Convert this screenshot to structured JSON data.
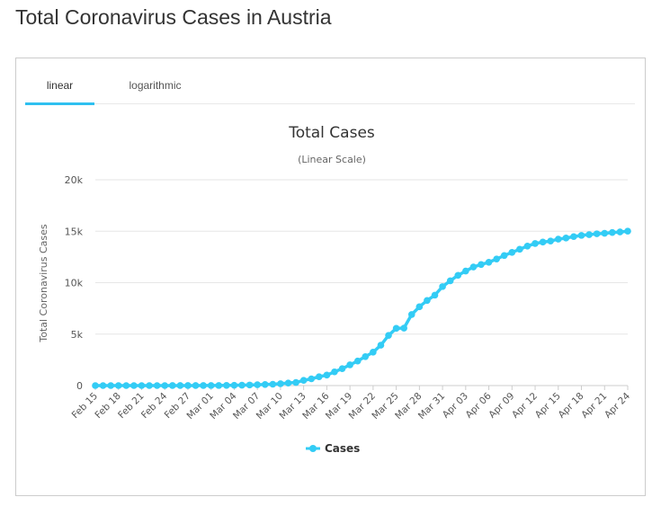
{
  "page": {
    "title": "Total Coronavirus Cases in Austria"
  },
  "tabs": [
    {
      "label": "linear",
      "active": true
    },
    {
      "label": "logarithmic",
      "active": false
    }
  ],
  "colors": {
    "series": "#33ccf5",
    "tab_accent": "#2fc0f0",
    "grid": "#e6e6e6"
  },
  "chart_data": {
    "type": "line",
    "title": "Total Cases",
    "subtitle": "(Linear Scale)",
    "ylabel": "Total Coronavirus Cases",
    "xlabel": "",
    "ylim": [
      0,
      20000
    ],
    "y_ticks": [
      0,
      5000,
      10000,
      15000,
      20000
    ],
    "y_tick_labels": [
      "0",
      "5k",
      "10k",
      "15k",
      "20k"
    ],
    "x_tick_labels": [
      "Feb 15",
      "Feb 18",
      "Feb 21",
      "Feb 24",
      "Feb 27",
      "Mar 01",
      "Mar 04",
      "Mar 07",
      "Mar 10",
      "Mar 13",
      "Mar 16",
      "Mar 19",
      "Mar 22",
      "Mar 25",
      "Mar 28",
      "Mar 31",
      "Apr 03",
      "Apr 06",
      "Apr 09",
      "Apr 12",
      "Apr 15",
      "Apr 18",
      "Apr 21",
      "Apr 24"
    ],
    "grid": true,
    "legend_position": "bottom-center",
    "x": [
      "Feb 15",
      "Feb 16",
      "Feb 17",
      "Feb 18",
      "Feb 19",
      "Feb 20",
      "Feb 21",
      "Feb 22",
      "Feb 23",
      "Feb 24",
      "Feb 25",
      "Feb 26",
      "Feb 27",
      "Feb 28",
      "Feb 29",
      "Mar 01",
      "Mar 02",
      "Mar 03",
      "Mar 04",
      "Mar 05",
      "Mar 06",
      "Mar 07",
      "Mar 08",
      "Mar 09",
      "Mar 10",
      "Mar 11",
      "Mar 12",
      "Mar 13",
      "Mar 14",
      "Mar 15",
      "Mar 16",
      "Mar 17",
      "Mar 18",
      "Mar 19",
      "Mar 20",
      "Mar 21",
      "Mar 22",
      "Mar 23",
      "Mar 24",
      "Mar 25",
      "Mar 26",
      "Mar 27",
      "Mar 28",
      "Mar 29",
      "Mar 30",
      "Mar 31",
      "Apr 01",
      "Apr 02",
      "Apr 03",
      "Apr 04",
      "Apr 05",
      "Apr 06",
      "Apr 07",
      "Apr 08",
      "Apr 09",
      "Apr 10",
      "Apr 11",
      "Apr 12",
      "Apr 13",
      "Apr 14",
      "Apr 15",
      "Apr 16",
      "Apr 17",
      "Apr 18",
      "Apr 19",
      "Apr 20",
      "Apr 21",
      "Apr 22",
      "Apr 23",
      "Apr 24"
    ],
    "series": [
      {
        "name": "Cases",
        "values": [
          0,
          0,
          0,
          0,
          0,
          0,
          0,
          0,
          0,
          0,
          2,
          2,
          3,
          5,
          9,
          10,
          10,
          18,
          29,
          41,
          55,
          79,
          104,
          131,
          182,
          246,
          302,
          504,
          655,
          860,
          1018,
          1332,
          1646,
          2013,
          2388,
          2814,
          3244,
          3924,
          4876,
          5560,
          5588,
          6909,
          7657,
          8271,
          8788,
          9618,
          10180,
          10711,
          11129,
          11525,
          11766,
          11983,
          12297,
          12639,
          12942,
          13244,
          13555,
          13806,
          13945,
          14041,
          14226,
          14336,
          14476,
          14595,
          14671,
          14749,
          14795,
          14873,
          14925,
          15002
        ]
      }
    ]
  }
}
